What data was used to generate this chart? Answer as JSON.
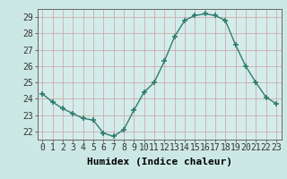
{
  "x": [
    0,
    1,
    2,
    3,
    4,
    5,
    6,
    7,
    8,
    9,
    10,
    11,
    12,
    13,
    14,
    15,
    16,
    17,
    18,
    19,
    20,
    21,
    22,
    23
  ],
  "y": [
    24.3,
    23.8,
    23.4,
    23.1,
    22.8,
    22.7,
    21.9,
    21.7,
    22.1,
    23.3,
    24.4,
    25.0,
    26.3,
    27.8,
    28.8,
    29.1,
    29.2,
    29.1,
    28.8,
    27.3,
    26.0,
    25.0,
    24.1,
    23.7
  ],
  "xlabel": "Humidex (Indice chaleur)",
  "ylim": [
    21.5,
    29.5
  ],
  "xlim": [
    -0.5,
    23.5
  ],
  "yticks": [
    22,
    23,
    24,
    25,
    26,
    27,
    28,
    29
  ],
  "xticks": [
    0,
    1,
    2,
    3,
    4,
    5,
    6,
    7,
    8,
    9,
    10,
    11,
    12,
    13,
    14,
    15,
    16,
    17,
    18,
    19,
    20,
    21,
    22,
    23
  ],
  "line_color": "#2e7d6e",
  "marker": "+",
  "bg_color": "#cce8e4",
  "grid_color_major": "#c8a0a0",
  "grid_color_minor": "#c8a0a0",
  "axis_bg": "#d4ecea",
  "xlabel_fontsize": 8,
  "tick_fontsize": 7
}
